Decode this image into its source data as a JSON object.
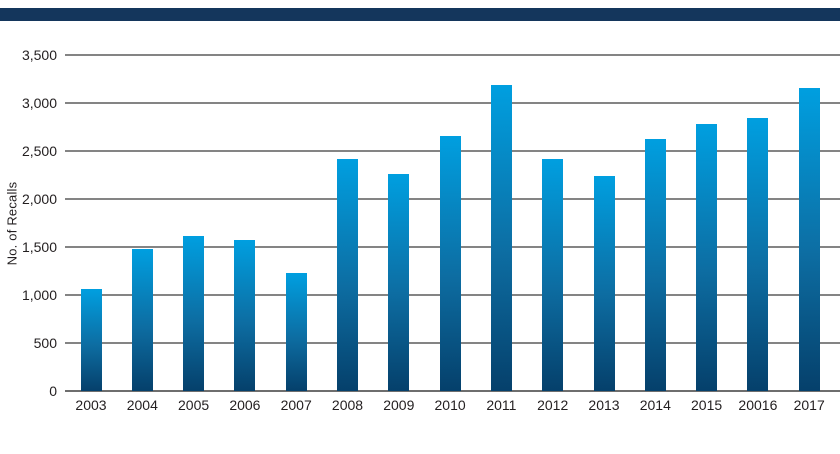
{
  "chart_data": {
    "type": "bar",
    "title": "",
    "xlabel": "",
    "ylabel": "No. of Recalls",
    "categories": [
      "2003",
      "2004",
      "2005",
      "2006",
      "2007",
      "2008",
      "2009",
      "2010",
      "2011",
      "2012",
      "2013",
      "2014",
      "2015",
      "20016",
      "2017"
    ],
    "values": [
      1060,
      1480,
      1610,
      1570,
      1225,
      2420,
      2265,
      2660,
      3190,
      2420,
      2235,
      2620,
      2785,
      2840,
      3160
    ],
    "ylim": [
      0,
      3500
    ],
    "ytick_step": 500,
    "ytick_labels": [
      "0",
      "500",
      "1,000",
      "1,500",
      "2,000",
      "2,500",
      "3,000",
      "3,500"
    ],
    "grid": true,
    "legend": null,
    "colors": {
      "bar_gradient_top": "#009fe0",
      "bar_gradient_mid": "#0d6da2",
      "bar_gradient_bottom": "#05406b",
      "gridline": "#848484",
      "axis_line": "#6e6e6e",
      "text": "#231f20",
      "top_rule": "#14365c",
      "background": "#ffffff"
    }
  }
}
